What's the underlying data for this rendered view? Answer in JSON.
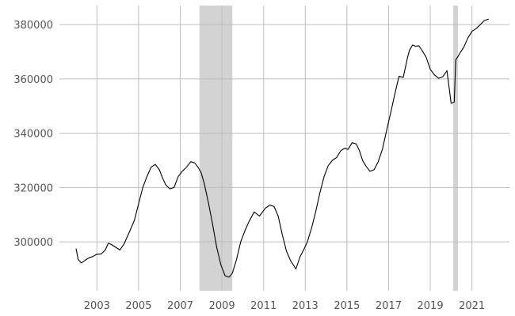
{
  "chart_data": {
    "type": "line",
    "title": "",
    "xlabel": "",
    "ylabel": "",
    "xlim": [
      2001.2,
      2022.8
    ],
    "ylim": [
      282000,
      387000
    ],
    "x_ticks": [
      2003,
      2005,
      2007,
      2009,
      2011,
      2013,
      2015,
      2017,
      2019,
      2021
    ],
    "x_tick_labels": [
      "2003",
      "2005",
      "2007",
      "2009",
      "2011",
      "2013",
      "2015",
      "2017",
      "2019",
      "2021"
    ],
    "y_ticks": [
      300000,
      320000,
      340000,
      360000,
      380000
    ],
    "y_tick_labels": [
      "300000",
      "320000",
      "340000",
      "360000",
      "380000"
    ],
    "grid": true,
    "legend": "none",
    "colors": {
      "line": "#000000",
      "grid": "#bdbdbd",
      "shade": "#d3d3d3"
    },
    "shaded_periods": [
      {
        "start": 2007.92,
        "end": 2009.5
      },
      {
        "start": 2020.1,
        "end": 2020.33
      }
    ],
    "series": [
      {
        "x": [
          2002.0,
          2002.1,
          2002.25,
          2002.45,
          2002.6,
          2002.8,
          2003.0,
          2003.2,
          2003.4,
          2003.55,
          2003.7,
          2003.9,
          2004.1,
          2004.3,
          2004.55,
          2004.8,
          2005.0,
          2005.2,
          2005.4,
          2005.6,
          2005.8,
          2006.0,
          2006.15,
          2006.3,
          2006.5,
          2006.7,
          2006.9,
          2007.1,
          2007.3,
          2007.5,
          2007.7,
          2007.85,
          2008.0,
          2008.15,
          2008.35,
          2008.55,
          2008.75,
          2008.95,
          2009.15,
          2009.35,
          2009.5,
          2009.7,
          2009.9,
          2010.1,
          2010.3,
          2010.55,
          2010.8,
          2011.0,
          2011.1,
          2011.3,
          2011.5,
          2011.7,
          2011.9,
          2012.1,
          2012.3,
          2012.55,
          2012.75,
          2012.95,
          2013.1,
          2013.3,
          2013.5,
          2013.7,
          2013.9,
          2014.1,
          2014.3,
          2014.5,
          2014.7,
          2014.9,
          2015.05,
          2015.25,
          2015.45,
          2015.6,
          2015.75,
          2015.9,
          2016.1,
          2016.3,
          2016.5,
          2016.7,
          2016.9,
          2017.1,
          2017.3,
          2017.5,
          2017.7,
          2017.9,
          2018.0,
          2018.15,
          2018.3,
          2018.45,
          2018.6,
          2018.8,
          2019.0,
          2019.2,
          2019.4,
          2019.6,
          2019.8,
          2020.0,
          2020.15,
          2020.22,
          2020.35,
          2020.45,
          2020.6,
          2020.8,
          2021.0,
          2021.2,
          2021.4,
          2021.6,
          2021.8
        ],
        "values": [
          297500,
          293500,
          292200,
          293300,
          294000,
          294600,
          295400,
          295500,
          297000,
          299500,
          299000,
          298000,
          297000,
          299200,
          303500,
          308000,
          314000,
          320000,
          324000,
          327500,
          328500,
          326500,
          323500,
          321000,
          319500,
          320000,
          324000,
          326000,
          327500,
          329500,
          329000,
          327500,
          325500,
          321500,
          314500,
          306500,
          298000,
          291500,
          287500,
          287000,
          288500,
          293500,
          300000,
          304000,
          307500,
          311000,
          309500,
          311500,
          312500,
          313500,
          313000,
          309500,
          302500,
          296500,
          293000,
          290000,
          294500,
          297500,
          300000,
          305000,
          311000,
          318000,
          324000,
          328000,
          330000,
          331000,
          333500,
          334500,
          334000,
          336500,
          336000,
          333500,
          330000,
          328000,
          326000,
          326500,
          329500,
          334000,
          341000,
          347500,
          354500,
          361000,
          360500,
          367500,
          370500,
          372500,
          372000,
          372200,
          370500,
          368000,
          363500,
          361500,
          360200,
          360800,
          363000,
          351000,
          351500,
          367000,
          368500,
          369800,
          371500,
          375000,
          377500,
          378500,
          380000,
          381500,
          382000
        ]
      }
    ]
  }
}
